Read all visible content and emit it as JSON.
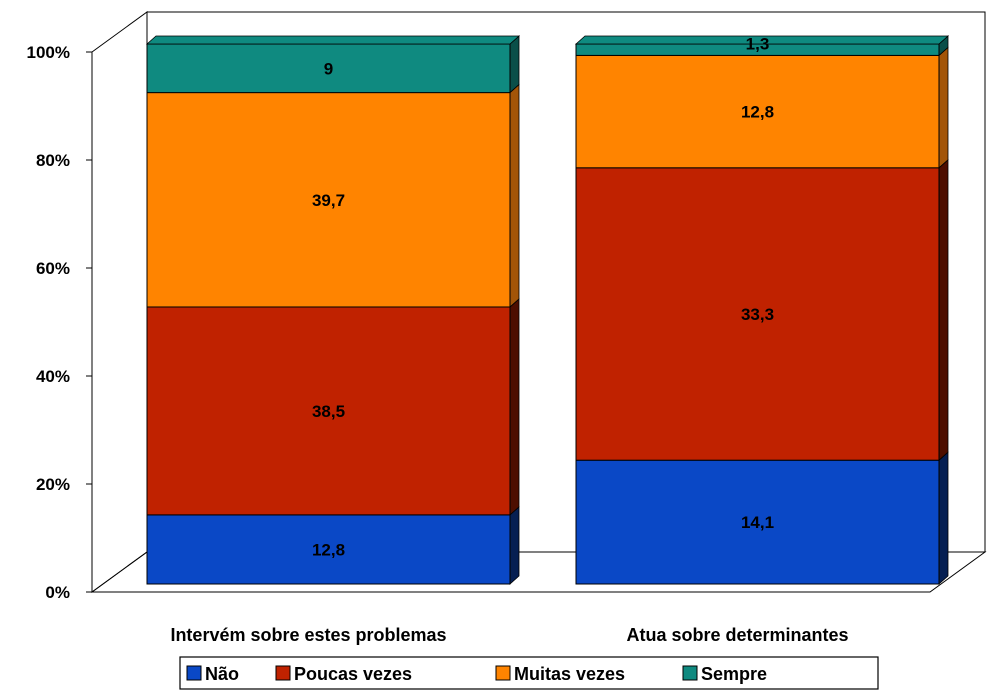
{
  "chart_data": {
    "type": "bar",
    "stacked": true,
    "percent": true,
    "three_d": true,
    "categories": [
      "Intervém sobre estes problemas",
      "Atua sobre determinantes"
    ],
    "series": [
      {
        "name": "Não",
        "values": [
          12.8,
          14.1
        ],
        "labels": [
          "12,8",
          "14,1"
        ]
      },
      {
        "name": "Poucas vezes",
        "values": [
          38.5,
          33.3
        ],
        "labels": [
          "38,5",
          "33,3"
        ]
      },
      {
        "name": "Muitas vezes",
        "values": [
          39.7,
          12.8
        ],
        "labels": [
          "39,7",
          "12,8"
        ]
      },
      {
        "name": "Sempre",
        "values": [
          9,
          1.3
        ],
        "labels": [
          "9",
          "1,3"
        ]
      }
    ],
    "title": "",
    "xlabel": "",
    "ylabel": "",
    "ylim": [
      0,
      100
    ],
    "yticks": [
      "0%",
      "20%",
      "40%",
      "60%",
      "80%",
      "100%"
    ],
    "grid": false,
    "legend_position": "bottom",
    "colors": {
      "Não": "#0a48c6",
      "Poucas vezes": "#c02200",
      "Muitas vezes": "#ff8400",
      "Sempre": "#0f8a80"
    },
    "side_colors": {
      "Não": "#061f52",
      "Poucas vezes": "#4d0e00",
      "Muitas vezes": "#a35508",
      "Sempre": "#0a4f49"
    }
  }
}
